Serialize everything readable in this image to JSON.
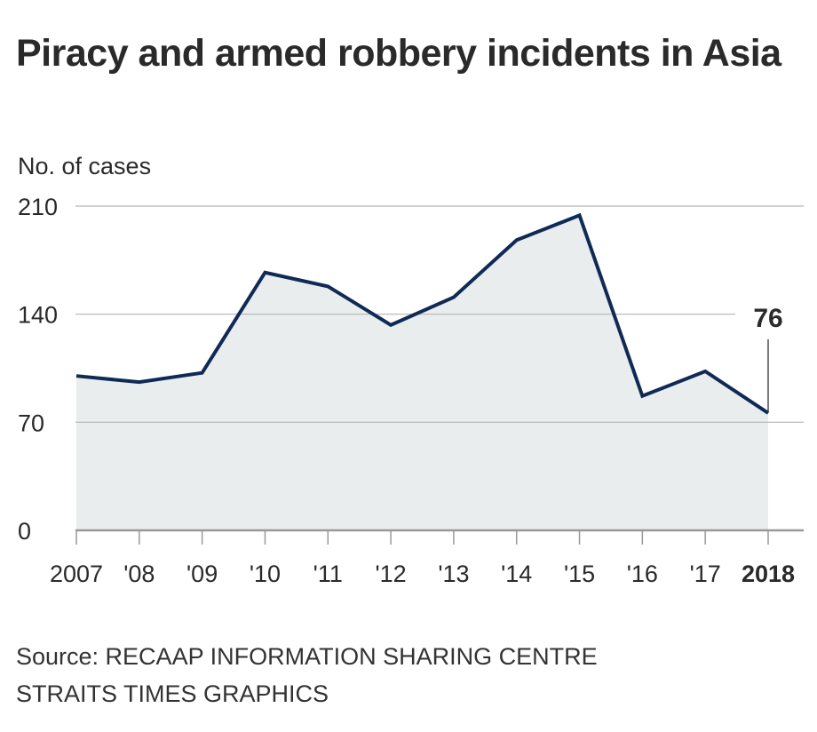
{
  "chart_data": {
    "type": "area",
    "title": "Piracy and armed robbery incidents in Asia",
    "ylabel": "No. of cases",
    "categories": [
      "2007",
      "'08",
      "'09",
      "'10",
      "'11",
      "'12",
      "'13",
      "'14",
      "'15",
      "'16",
      "'17",
      "2018"
    ],
    "values": [
      100,
      96,
      102,
      167,
      158,
      133,
      151,
      188,
      204,
      87,
      103,
      76
    ],
    "ylim": [
      0,
      210
    ],
    "yticks": [
      "0",
      "70",
      "140",
      "210"
    ],
    "grid": true,
    "annotation": {
      "label": "76",
      "category": "2018"
    },
    "colors": {
      "line": "#0f2a55",
      "fill": "#e9edee",
      "grid": "#b5b5b5",
      "axis": "#999999"
    }
  },
  "footer": {
    "source": "Source: RECAAP INFORMATION SHARING CENTRE",
    "credit": "STRAITS TIMES GRAPHICS"
  }
}
